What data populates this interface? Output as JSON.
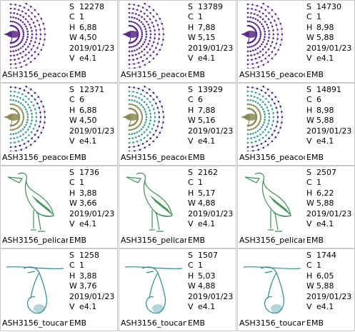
{
  "cells": [
    {
      "file": "ASH3156_peacoc",
      "format": "EMB",
      "design": "peacock",
      "palette": "purple",
      "S": "12278",
      "C": "1",
      "H": "6,88",
      "W": "4,50",
      "date": "2019/01/23",
      "V": "e4.1"
    },
    {
      "file": "ASH3156_peacoc",
      "format": "EMB",
      "design": "peacock",
      "palette": "purple",
      "S": "13789",
      "C": "1",
      "H": "7,88",
      "W": "5,15",
      "date": "2019/01/23",
      "V": "e4.1"
    },
    {
      "file": "ASH3156_peacoc",
      "format": "EMB",
      "design": "peacock",
      "palette": "purple",
      "S": "14730",
      "C": "1",
      "H": "8,98",
      "W": "5,88",
      "date": "2019/01/23",
      "V": "e4.1"
    },
    {
      "file": "ASH3156_peacoc",
      "format": "EMB",
      "design": "peacock",
      "palette": "multi",
      "S": "12371",
      "C": "6",
      "H": "6,88",
      "W": "4,50",
      "date": "2019/01/23",
      "V": "e4.1"
    },
    {
      "file": "ASH3156_peacoc",
      "format": "EMB",
      "design": "peacock",
      "palette": "multi",
      "S": "13929",
      "C": "6",
      "H": "7,88",
      "W": "5,16",
      "date": "2019/01/23",
      "V": "e4.1"
    },
    {
      "file": "ASH3156_peacoc",
      "format": "EMB",
      "design": "peacock",
      "palette": "multi",
      "S": "14891",
      "C": "6",
      "H": "8,98",
      "W": "5,88",
      "date": "2019/01/23",
      "V": "e4.1"
    },
    {
      "file": "ASH3156_pelican",
      "format": "EMB",
      "design": "pelican",
      "palette": "green",
      "S": "1736",
      "C": "1",
      "H": "3,88",
      "W": "3,66",
      "date": "2019/01/23",
      "V": "e4.1"
    },
    {
      "file": "ASH3156_pelican",
      "format": "EMB",
      "design": "pelican",
      "palette": "green",
      "S": "2162",
      "C": "1",
      "H": "5,17",
      "W": "4,88",
      "date": "2019/01/23",
      "V": "e4.1"
    },
    {
      "file": "ASH3156_pelican",
      "format": "EMB",
      "design": "pelican",
      "palette": "green",
      "S": "2507",
      "C": "1",
      "H": "6,22",
      "W": "5,88",
      "date": "2019/01/23",
      "V": "e4.1"
    },
    {
      "file": "ASH3156_toucan",
      "format": "EMB",
      "design": "toucan",
      "palette": "teal",
      "S": "1258",
      "C": "1",
      "H": "3,88",
      "W": "3,76",
      "date": "2019/01/23",
      "V": "e4.1"
    },
    {
      "file": "ASH3156_toucan",
      "format": "EMB",
      "design": "toucan",
      "palette": "teal",
      "S": "1507",
      "C": "1",
      "H": "5,03",
      "W": "4,88",
      "date": "2019/01/23",
      "V": "e4.1"
    },
    {
      "file": "ASH3156_toucan",
      "format": "EMB",
      "design": "toucan",
      "palette": "teal",
      "S": "1744",
      "C": "1",
      "H": "6,05",
      "W": "5,88",
      "date": "2019/01/23",
      "V": "e4.1"
    }
  ],
  "labels": {
    "S": "S",
    "C": "C",
    "H": "H",
    "W": "W",
    "V": "V"
  },
  "colors": {
    "purple": "#5a2a86",
    "multi_inner": "#8a8a55",
    "multi_mid": "#3c9a8c",
    "multi_outer": "#3a2a7a",
    "green": "#3f8f5a",
    "teal": "#2a8a92",
    "grid": "#c8c8c8"
  }
}
